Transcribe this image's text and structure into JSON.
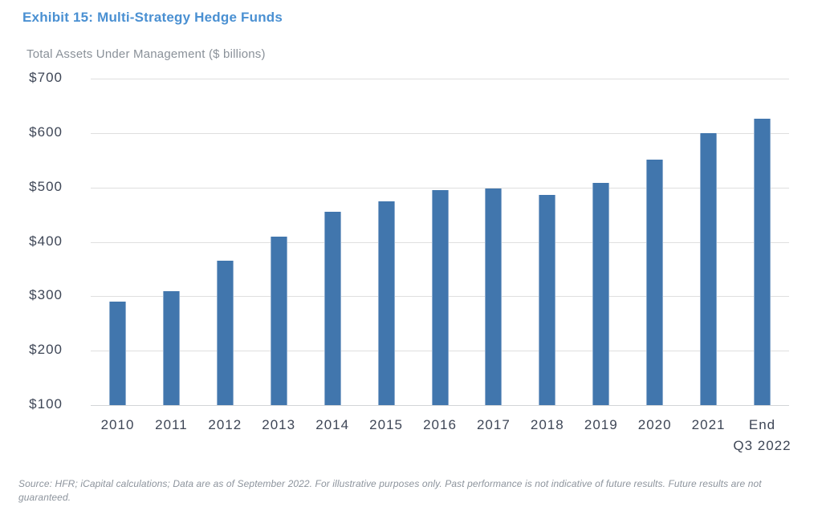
{
  "header": {
    "title": "Exhibit 15: Multi-Strategy Hedge Funds"
  },
  "chart_data": {
    "type": "bar",
    "title": "Exhibit 15: Multi-Strategy Hedge Funds",
    "subtitle": "Total Assets Under Management ($ billions)",
    "categories": [
      "2010",
      "2011",
      "2012",
      "2013",
      "2014",
      "2015",
      "2016",
      "2017",
      "2018",
      "2019",
      "2020",
      "2021",
      "End\nQ3 2022"
    ],
    "values": [
      290,
      310,
      365,
      410,
      456,
      474,
      495,
      498,
      487,
      508,
      551,
      600,
      627
    ],
    "xlabel": "",
    "ylabel": "",
    "ylim": [
      100,
      700
    ],
    "y_tick_values": [
      700,
      600,
      500,
      400,
      300,
      200,
      100
    ],
    "y_tick_labels": [
      "$700",
      "$600",
      "$500",
      "$400",
      "$300",
      "$200",
      "$100"
    ],
    "grid": true,
    "legend_position": "none"
  },
  "footer": {
    "source_note": "Source: HFR; iCapital calculations; Data are as of September 2022. For illustrative purposes only. Past performance is not indicative of future results. Future results are not guaranteed."
  },
  "colors": {
    "title": "#4a90d2",
    "subtitle": "#8a9199",
    "bar": "#4176ad",
    "axis_text": "#3e4656",
    "gridline": "#dfdfdf",
    "footnote": "#8d949d"
  }
}
